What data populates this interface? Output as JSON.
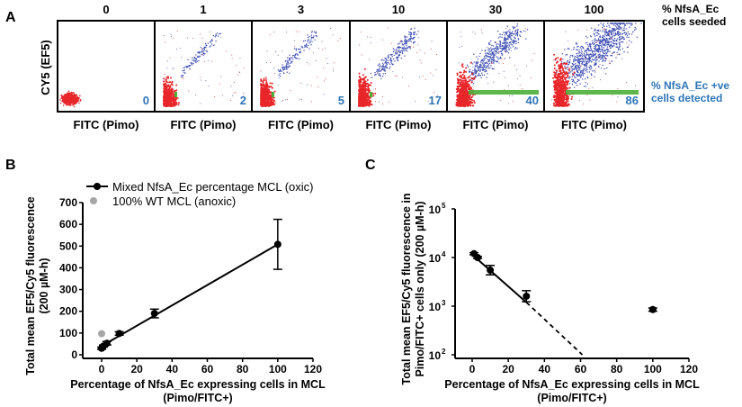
{
  "panel_a": {
    "label": "A",
    "top_label_line1": "% NfsA_Ec",
    "top_label_line2": "cells seeded",
    "right_label_line1": "% NfsA_Ec +ve",
    "right_label_line2": "cells detected",
    "ylabel": "CY5 (EF5)",
    "xlabel": "FITC (Pimo)",
    "seeded": [
      "0",
      "1",
      "3",
      "10",
      "30",
      "100"
    ],
    "detected": [
      "0",
      "2",
      "5",
      "17",
      "40",
      "86"
    ],
    "colors": {
      "negative": "#e8262a",
      "positive": "#3a4bb0",
      "gate": "#4caf3a",
      "detected_text": "#2e75b6"
    }
  },
  "chart_data": [
    {
      "panel": "B",
      "type": "scatter",
      "xlabel": "Percentage of NfsA_Ec expressing cells in MCL",
      "xlabel2": "(Pimo/FITC+)",
      "ylabel": "Total mean EF5/Cy5 fluorescence",
      "ylabel2": "(200 µM-h)",
      "xlim": [
        -10,
        120
      ],
      "ylim": [
        0,
        700
      ],
      "xticks": [
        "0",
        "20",
        "40",
        "60",
        "80",
        "100",
        "120"
      ],
      "yticks": [
        "0",
        "100",
        "200",
        "300",
        "400",
        "500",
        "600",
        "700"
      ],
      "legend_position": "top-left",
      "series": [
        {
          "name": "Mixed NfsA_Ec percentage MCL (oxic)",
          "color": "#000000",
          "x": [
            0,
            1,
            3,
            10,
            30,
            100
          ],
          "y": [
            30,
            40,
            53,
            98,
            190,
            508
          ],
          "err": [
            5,
            5,
            8,
            8,
            20,
            115
          ],
          "fit_line": {
            "x": [
              0,
              100
            ],
            "y": [
              40,
              508
            ]
          }
        },
        {
          "name": "100% WT MCL (anoxic)",
          "color": "#a6a6a6",
          "x": [
            0
          ],
          "y": [
            97
          ],
          "err": [
            0
          ]
        }
      ]
    },
    {
      "panel": "C",
      "type": "scatter",
      "xlabel": "Percentage of NfsA_Ec expressing cells in MCL",
      "xlabel2": "(Pimo/FITC+)",
      "ylabel": "Total mean EF5/Cy5 fluorescence in",
      "ylabel2": "Pimo/FITC+ cells only (200 µM-h)",
      "xlim": [
        -10,
        120
      ],
      "ylim": [
        100,
        100000
      ],
      "yscale": "log",
      "xticks": [
        "0",
        "20",
        "40",
        "60",
        "80",
        "100",
        "120"
      ],
      "yticks": [
        {
          "base": "10",
          "exp": "2"
        },
        {
          "base": "10",
          "exp": "3"
        },
        {
          "base": "10",
          "exp": "4"
        },
        {
          "base": "10",
          "exp": "5"
        }
      ],
      "series": [
        {
          "color": "#000000",
          "x": [
            1,
            3,
            10,
            30,
            100
          ],
          "y": [
            12000,
            10000,
            5500,
            1600,
            850
          ],
          "err_ratio": [
            1.05,
            1.05,
            1.25,
            1.3,
            1.08
          ],
          "fit_line": {
            "x": [
              0,
              30
            ],
            "y": [
              11500,
              1200
            ]
          },
          "extrapolation": {
            "x": [
              30,
              61
            ],
            "y": [
              1200,
              100
            ]
          }
        }
      ]
    }
  ]
}
